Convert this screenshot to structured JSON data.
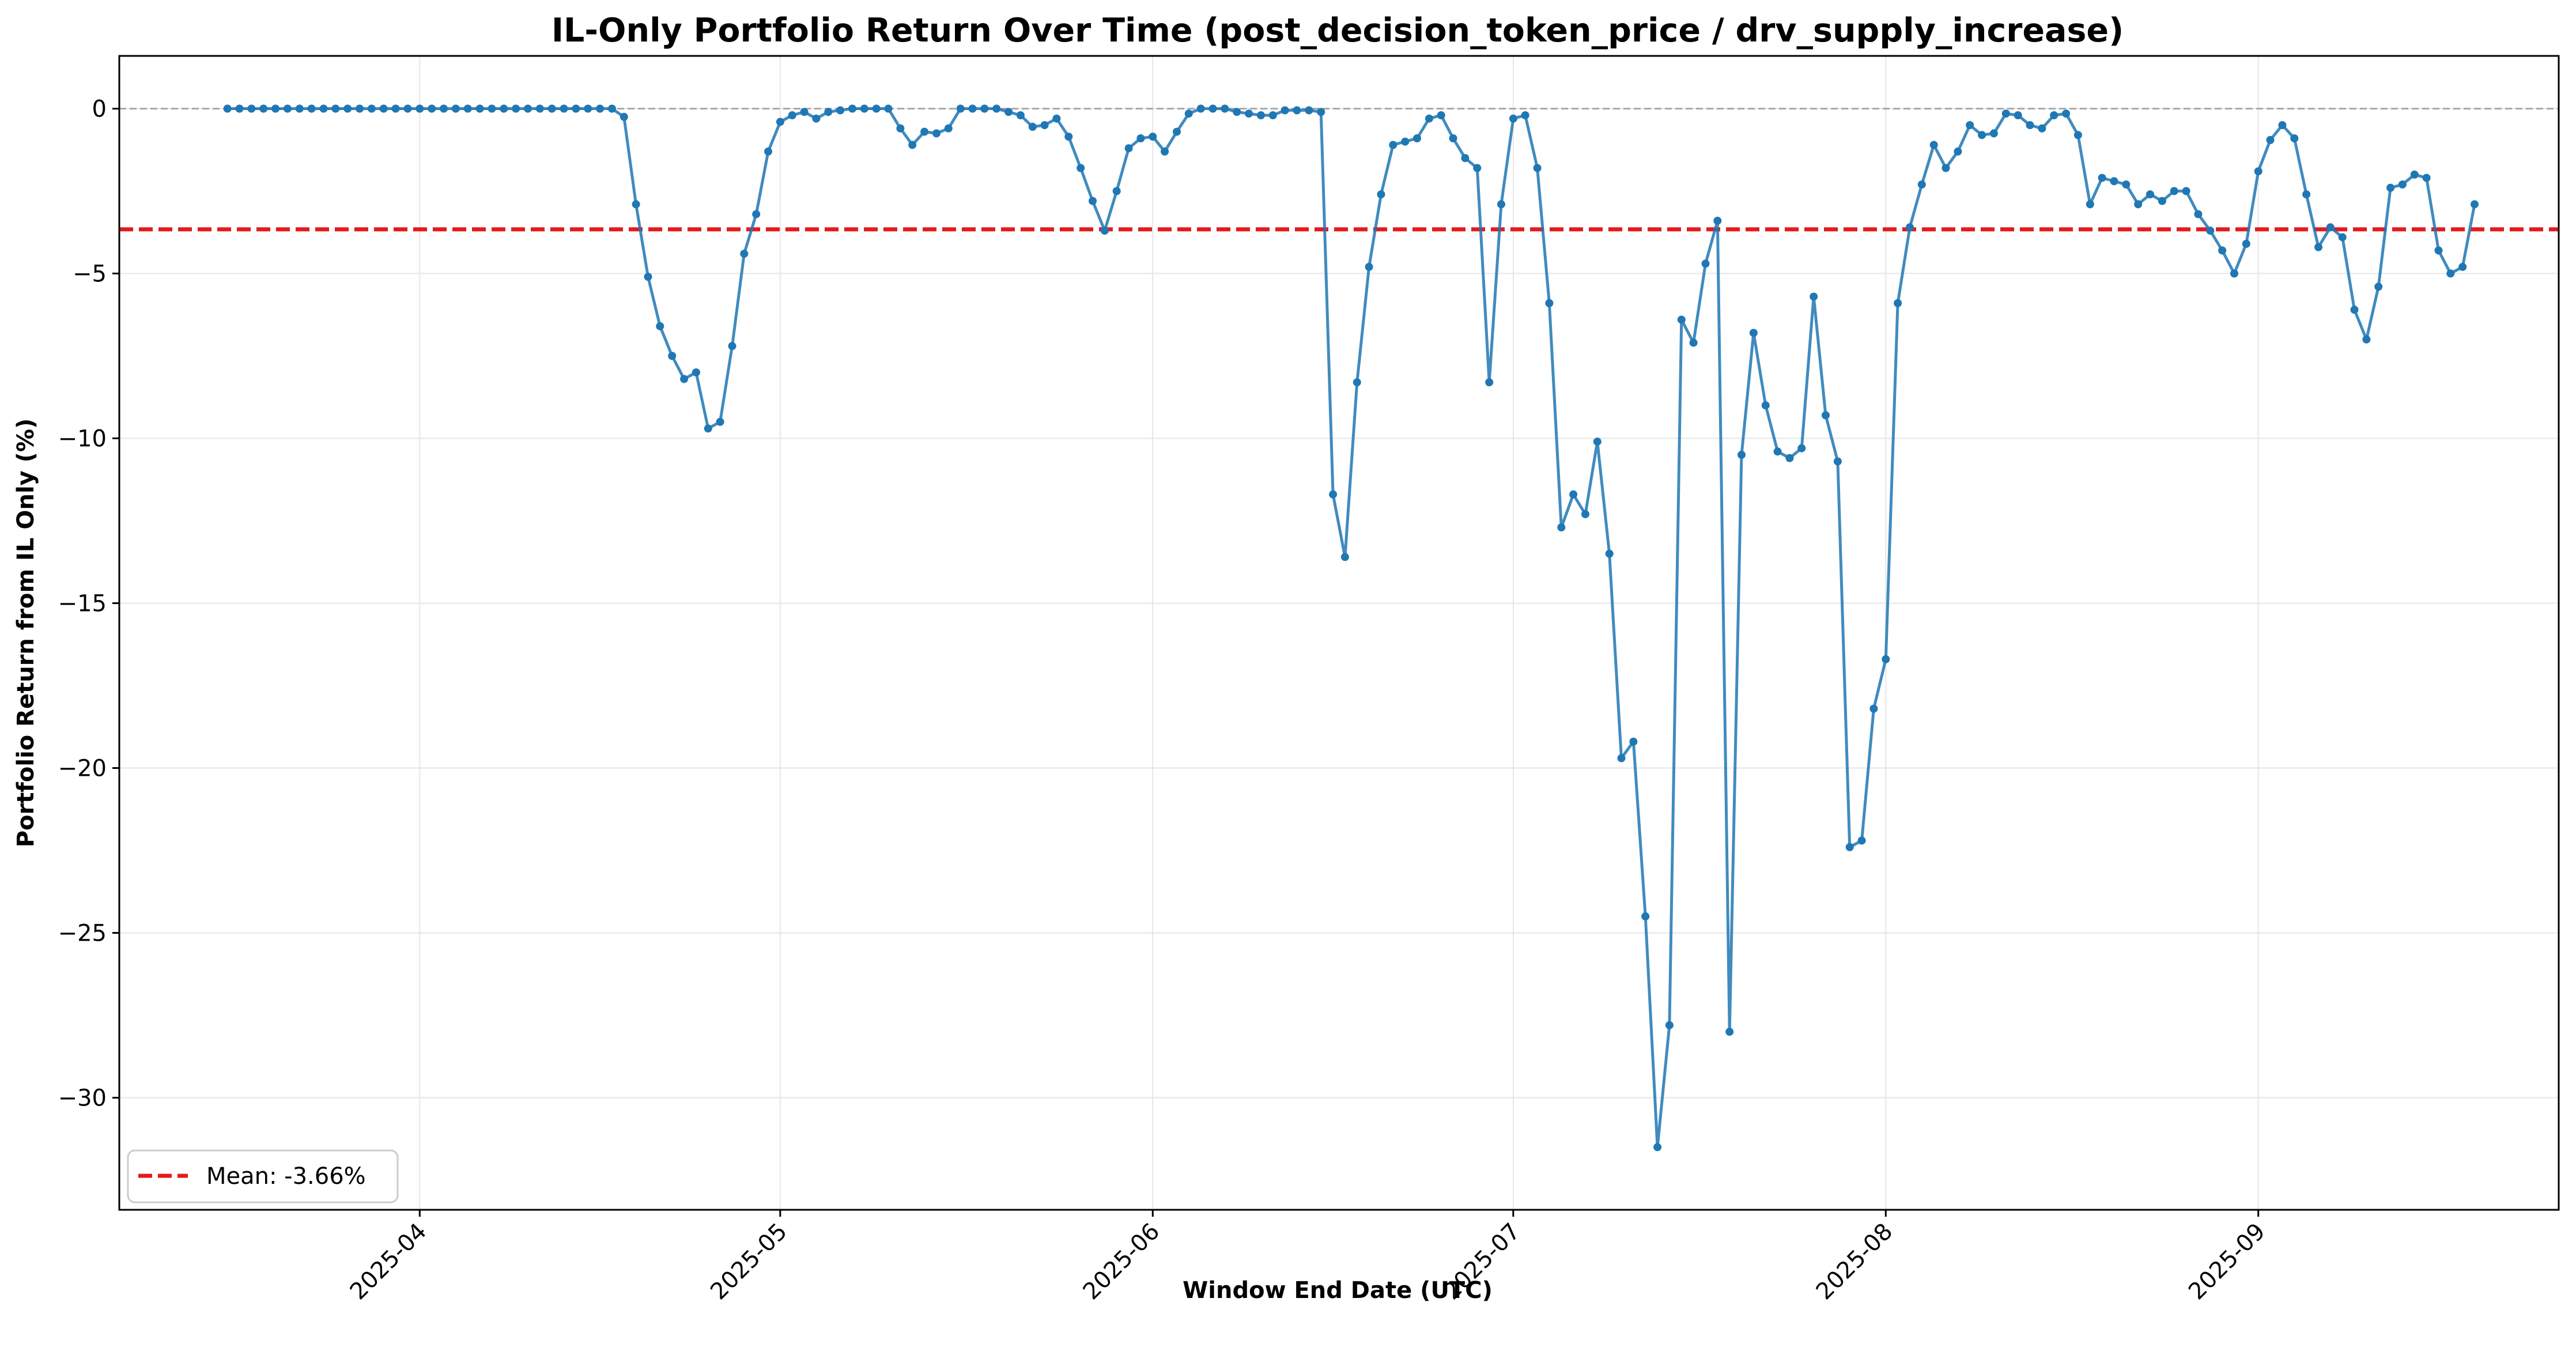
{
  "chart_data": {
    "type": "line",
    "title": "IL-Only Portfolio Return Over Time (post_decision_token_price / drv_supply_increase)",
    "xlabel": "Window End Date (UTC)",
    "ylabel": "Portfolio Return from IL Only (%)",
    "xlim": [
      "2025-03-07",
      "2025-09-26"
    ],
    "ylim": [
      -33.4,
      1.6
    ],
    "x_ticks": [
      "2025-04-01",
      "2025-05-01",
      "2025-06-01",
      "2025-07-01",
      "2025-08-01",
      "2025-09-01"
    ],
    "x_tick_labels": [
      "2025-04",
      "2025-05",
      "2025-06",
      "2025-07",
      "2025-08",
      "2025-09"
    ],
    "y_ticks": [
      0,
      -5,
      -10,
      -15,
      -20,
      -25,
      -30
    ],
    "y_tick_labels": [
      "0",
      "−5",
      "−10",
      "−15",
      "−20",
      "−25",
      "−30"
    ],
    "grid": true,
    "legend_position": "lower-left",
    "series": [
      {
        "name": "",
        "color": "#1f77b4",
        "start_date": "2025-03-16",
        "step_days": 1,
        "values": [
          0,
          0,
          0,
          0,
          0,
          0,
          0,
          0,
          0,
          0,
          0,
          0,
          0,
          0,
          0,
          0,
          0,
          0,
          0,
          0,
          0,
          0,
          0,
          0,
          0,
          0,
          0,
          0,
          0,
          0,
          0,
          0,
          0,
          -0.25,
          -2.9,
          -5.1,
          -6.6,
          -7.5,
          -8.2,
          -8,
          -9.7,
          -9.5,
          -7.2,
          -4.4,
          -3.2,
          -1.3,
          -0.4,
          -0.2,
          -0.1,
          -0.3,
          -0.1,
          -0.05,
          0,
          0,
          0,
          0,
          -0.6,
          -1.1,
          -0.7,
          -0.75,
          -0.6,
          0,
          0,
          0,
          0,
          -0.1,
          -0.2,
          -0.55,
          -0.5,
          -0.3,
          -0.85,
          -1.8,
          -2.8,
          -3.7,
          -2.5,
          -1.2,
          -0.9,
          -0.85,
          -1.3,
          -0.7,
          -0.15,
          0,
          0,
          0,
          -0.1,
          -0.15,
          -0.2,
          -0.2,
          -0.05,
          -0.05,
          -0.05,
          -0.1,
          -11.7,
          -13.6,
          -8.3,
          -4.8,
          -2.6,
          -1.1,
          -1,
          -0.9,
          -0.3,
          -0.2,
          -0.9,
          -1.5,
          -1.8,
          -8.3,
          -2.9,
          -0.3,
          -0.2,
          -1.8,
          -5.9,
          -12.7,
          -11.7,
          -12.3,
          -10.1,
          -13.5,
          -19.7,
          -19.2,
          -24.5,
          -31.5,
          -27.8,
          -6.4,
          -7.1,
          -4.7,
          -3.4,
          -28,
          -10.5,
          -6.8,
          -9,
          -10.4,
          -10.6,
          -10.3,
          -5.7,
          -9.3,
          -10.7,
          -22.4,
          -22.2,
          -18.2,
          -16.7,
          -5.9,
          -3.6,
          -2.3,
          -1.1,
          -1.8,
          -1.3,
          -0.5,
          -0.8,
          -0.75,
          -0.15,
          -0.2,
          -0.5,
          -0.6,
          -0.2,
          -0.15,
          -0.8,
          -2.9,
          -2.1,
          -2.2,
          -2.3,
          -2.9,
          -2.6,
          -2.8,
          -2.5,
          -2.5,
          -3.2,
          -3.7,
          -4.3,
          -5,
          -4.1,
          -1.9,
          -0.95,
          -0.5,
          -0.9,
          -2.6,
          -4.2,
          -3.6,
          -3.9,
          -6.1,
          -7,
          -5.4,
          -2.4,
          -2.3,
          -2,
          -2.1,
          -4.3,
          -5,
          -4.8,
          -2.9
        ]
      }
    ],
    "reference_lines": [
      {
        "name": "Mean: -3.66%",
        "value": -3.66,
        "color": "#e41a1c",
        "style": "dashed"
      },
      {
        "name": "",
        "value": 0,
        "color": "#aaaaaa",
        "style": "dashed"
      }
    ],
    "legend": [
      {
        "label": "Mean: -3.66%",
        "color": "#e41a1c",
        "style": "dashed"
      }
    ]
  }
}
